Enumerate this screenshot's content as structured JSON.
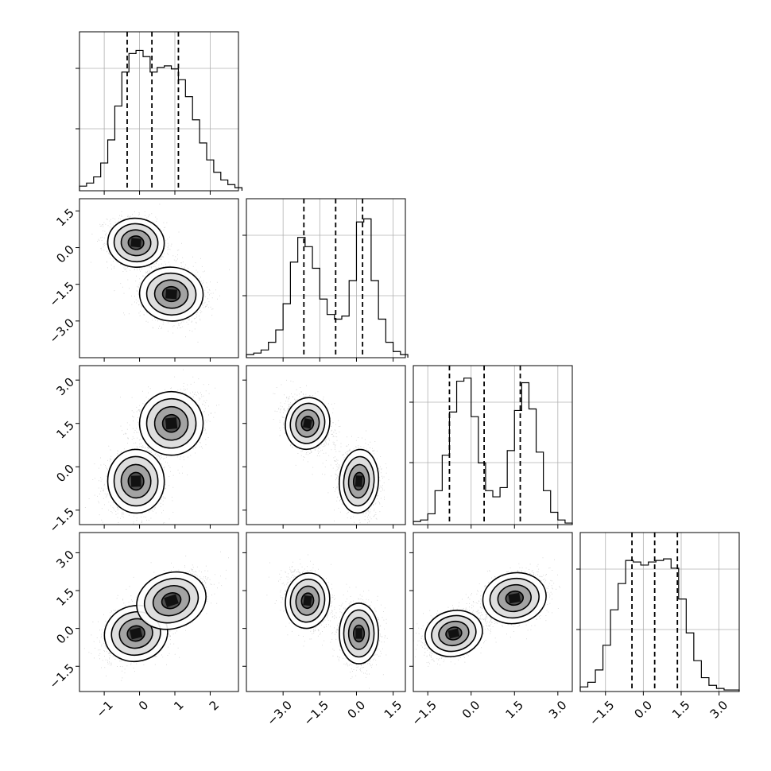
{
  "chart_data": {
    "type": "corner",
    "variables": 4,
    "grid": true,
    "colors": {
      "line": "#000000",
      "points": "#9a9a9a",
      "grid": "#b0b0b0",
      "frame": "#000000"
    },
    "axis_ranges": [
      [
        -1.7,
        2.8
      ],
      [
        -4.5,
        2.0
      ],
      [
        -2.0,
        3.5
      ],
      [
        -2.5,
        3.8
      ]
    ],
    "tick_labels": [
      [
        "−1",
        "0",
        "1",
        "2"
      ],
      [
        "−3.0",
        "−1.5",
        "0.0",
        "1.5"
      ],
      [
        "−1.5",
        "0.0",
        "1.5",
        "3.0"
      ],
      [
        "−1.5",
        "0.0",
        "1.5",
        "3.0"
      ]
    ],
    "tick_values": [
      [
        -1,
        0,
        1,
        2
      ],
      [
        -3.0,
        -1.5,
        0.0,
        1.5
      ],
      [
        -1.5,
        0.0,
        1.5,
        3.0
      ],
      [
        -1.5,
        0.0,
        1.5,
        3.0
      ]
    ],
    "quantiles": [
      [
        -0.35,
        0.35,
        1.1
      ],
      [
        -2.15,
        -0.85,
        0.25
      ],
      [
        -0.75,
        0.45,
        1.7
      ],
      [
        -0.45,
        0.45,
        1.35
      ]
    ],
    "histograms": [
      {
        "edges_start": -1.7,
        "bin_width": 0.2,
        "counts": [
          0.03,
          0.05,
          0.09,
          0.18,
          0.33,
          0.55,
          0.77,
          0.89,
          0.91,
          0.87,
          0.77,
          0.8,
          0.81,
          0.79,
          0.72,
          0.61,
          0.46,
          0.31,
          0.2,
          0.12,
          0.07,
          0.04,
          0.02
        ]
      },
      {
        "edges_start": -4.5,
        "bin_width": 0.3,
        "counts": [
          0.02,
          0.03,
          0.05,
          0.1,
          0.18,
          0.35,
          0.62,
          0.78,
          0.72,
          0.58,
          0.38,
          0.28,
          0.25,
          0.27,
          0.5,
          0.88,
          0.9,
          0.5,
          0.25,
          0.1,
          0.04,
          0.02
        ]
      },
      {
        "edges_start": -2.0,
        "bin_width": 0.25,
        "counts": [
          0.02,
          0.03,
          0.07,
          0.22,
          0.45,
          0.73,
          0.93,
          0.95,
          0.7,
          0.4,
          0.22,
          0.18,
          0.24,
          0.48,
          0.74,
          0.92,
          0.75,
          0.47,
          0.22,
          0.08,
          0.03,
          0.01
        ]
      },
      {
        "edges_start": -2.5,
        "bin_width": 0.3,
        "counts": [
          0.03,
          0.06,
          0.14,
          0.3,
          0.53,
          0.7,
          0.85,
          0.84,
          0.82,
          0.84,
          0.85,
          0.86,
          0.8,
          0.6,
          0.38,
          0.2,
          0.09,
          0.04,
          0.02,
          0.01,
          0.01
        ]
      }
    ],
    "scatter_panels": [
      {
        "x_var": 0,
        "y_var": 1,
        "modes": [
          {
            "mean": [
              -0.1,
              0.2
            ],
            "sd": [
              0.4,
              0.5
            ],
            "corr": -0.15,
            "weight": 0.5
          },
          {
            "mean": [
              0.9,
              -1.9
            ],
            "sd": [
              0.45,
              0.55
            ],
            "corr": -0.1,
            "weight": 0.5
          }
        ]
      },
      {
        "x_var": 0,
        "y_var": 2,
        "modes": [
          {
            "mean": [
              -0.1,
              -0.5
            ],
            "sd": [
              0.4,
              0.55
            ],
            "corr": 0.05,
            "weight": 0.5
          },
          {
            "mean": [
              0.9,
              1.5
            ],
            "sd": [
              0.45,
              0.55
            ],
            "corr": 0.15,
            "weight": 0.5
          }
        ]
      },
      {
        "x_var": 0,
        "y_var": 3,
        "modes": [
          {
            "mean": [
              -0.1,
              -0.2
            ],
            "sd": [
              0.45,
              0.55
            ],
            "corr": 0.35,
            "weight": 0.5
          },
          {
            "mean": [
              0.9,
              1.1
            ],
            "sd": [
              0.5,
              0.55
            ],
            "corr": 0.5,
            "weight": 0.5
          }
        ]
      },
      {
        "x_var": 1,
        "y_var": 2,
        "modes": [
          {
            "mean": [
              -2.0,
              1.5
            ],
            "sd": [
              0.45,
              0.45
            ],
            "corr": -0.3,
            "weight": 0.5
          },
          {
            "mean": [
              0.1,
              -0.5
            ],
            "sd": [
              0.4,
              0.55
            ],
            "corr": -0.1,
            "weight": 0.5
          }
        ]
      },
      {
        "x_var": 1,
        "y_var": 3,
        "modes": [
          {
            "mean": [
              -2.0,
              1.1
            ],
            "sd": [
              0.45,
              0.55
            ],
            "corr": -0.2,
            "weight": 0.5
          },
          {
            "mean": [
              0.1,
              -0.2
            ],
            "sd": [
              0.4,
              0.6
            ],
            "corr": 0.0,
            "weight": 0.5
          }
        ]
      },
      {
        "x_var": 2,
        "y_var": 3,
        "modes": [
          {
            "mean": [
              -0.6,
              -0.2
            ],
            "sd": [
              0.5,
              0.45
            ],
            "corr": 0.35,
            "weight": 0.5
          },
          {
            "mean": [
              1.5,
              1.2
            ],
            "sd": [
              0.55,
              0.5
            ],
            "corr": 0.25,
            "weight": 0.5
          }
        ]
      }
    ]
  }
}
